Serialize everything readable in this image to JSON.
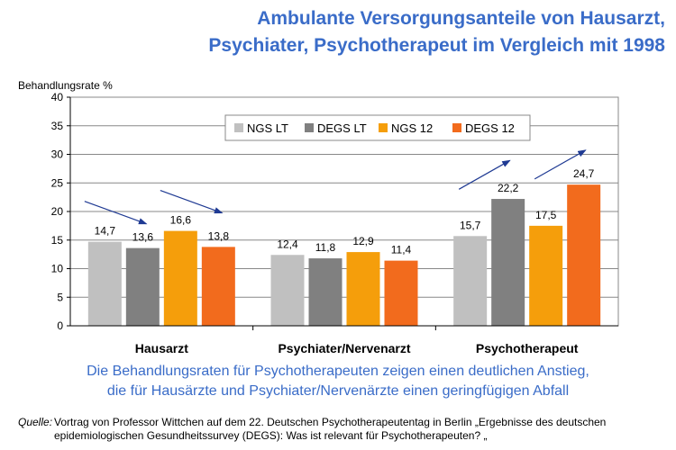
{
  "title_line1": "Ambulante Versorgungsanteile von Hausarzt,",
  "title_line2": "Psychiater, Psychotherapeut im Vergleich mit 1998",
  "chart_data": {
    "type": "bar",
    "ylabel": "Behandlungsrate  %",
    "ylim": [
      0,
      40
    ],
    "yticks": [
      0,
      5,
      10,
      15,
      20,
      25,
      30,
      35,
      40
    ],
    "grid": true,
    "legend_position": "top-center",
    "categories": [
      "Hausarzt",
      "Psychiater/Nervenarzt",
      "Psychotherapeut"
    ],
    "series": [
      {
        "name": "NGS LT",
        "color": "#C0C0C0",
        "values": [
          14.7,
          12.4,
          15.7
        ],
        "labels": [
          "14,7",
          "12,4",
          "15,7"
        ]
      },
      {
        "name": "DEGS LT",
        "color": "#808080",
        "values": [
          13.6,
          11.8,
          22.2
        ],
        "labels": [
          "13,6",
          "11,8",
          "22,2"
        ]
      },
      {
        "name": "NGS 12",
        "color": "#F59E0B",
        "values": [
          16.6,
          12.9,
          17.5
        ],
        "labels": [
          "16,6",
          "12,9",
          "17,5"
        ]
      },
      {
        "name": "DEGS 12",
        "color": "#F26B1D",
        "values": [
          13.8,
          11.4,
          24.7
        ],
        "labels": [
          "13,8",
          "11,4",
          "24,7"
        ]
      }
    ],
    "annotations": [
      {
        "type": "arrow",
        "direction": "down",
        "category": "Hausarzt",
        "pair": "LT"
      },
      {
        "type": "arrow",
        "direction": "down",
        "category": "Hausarzt",
        "pair": "12"
      },
      {
        "type": "arrow",
        "direction": "up",
        "category": "Psychotherapeut",
        "pair": "LT"
      },
      {
        "type": "arrow",
        "direction": "up",
        "category": "Psychotherapeut",
        "pair": "12"
      }
    ]
  },
  "caption_line1": "Die Behandlungsraten für Psychotherapeuten zeigen einen deutlichen Anstieg,",
  "caption_line2": "die für Hausärzte und Psychiater/Nervenärzte einen geringfügigen Abfall",
  "source": {
    "label": "Quelle:",
    "line1": "Vortrag von Professor Wittchen auf dem 22. Deutschen Psychotherapeutentag in Berlin „Ergebnisse des deutschen",
    "line2": "epidemiologischen Gesundheitssurvey (DEGS): Was ist relevant für Psychotherapeuten? „"
  },
  "colors": {
    "title": "#3A6CC8",
    "arrow": "#1F3A93",
    "grid": "#888888"
  }
}
